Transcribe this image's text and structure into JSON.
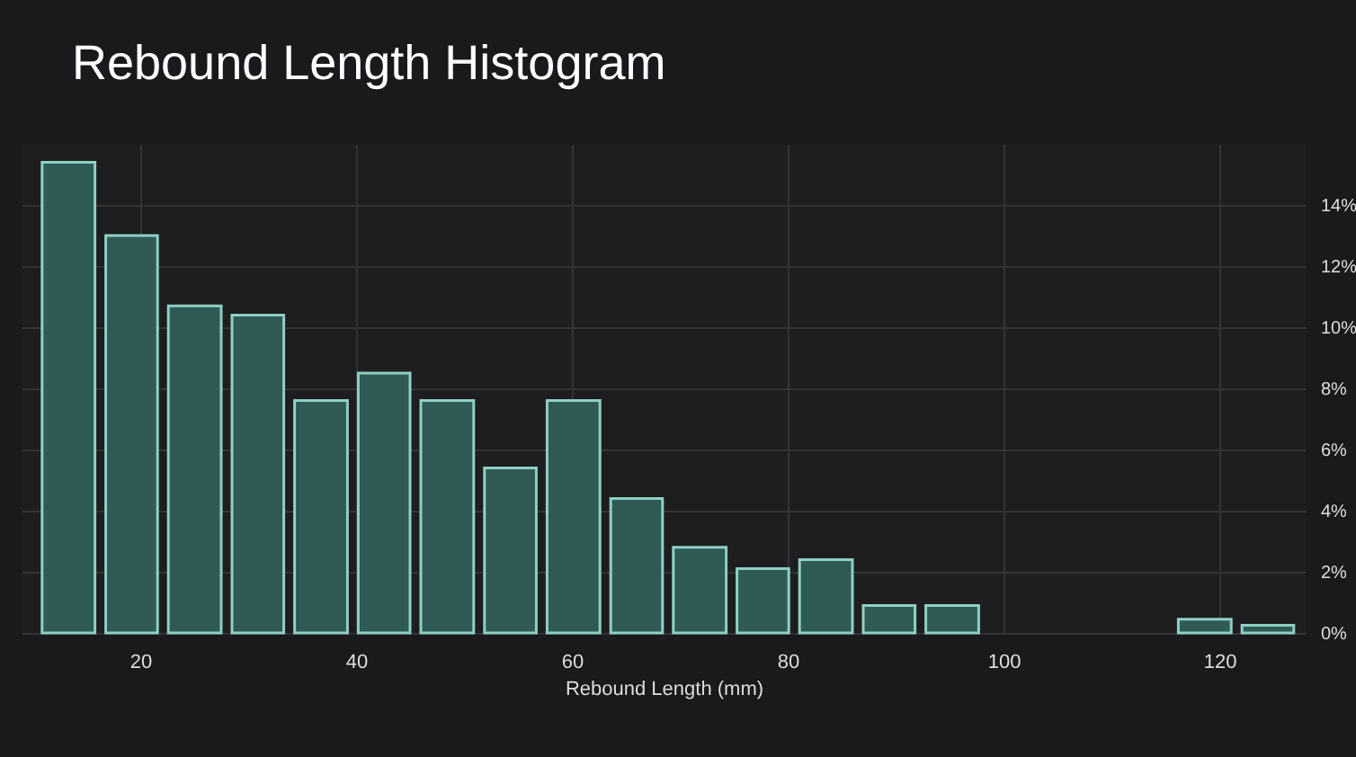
{
  "chart_data": {
    "type": "histogram",
    "title": "Rebound Length Histogram",
    "xlabel": "Rebound Length (mm)",
    "bins": [
      10.4,
      16.3,
      22.1,
      28.0,
      33.8,
      39.7,
      45.5,
      51.4,
      57.2,
      63.1,
      68.9,
      74.8,
      80.6,
      86.5,
      92.3,
      98.2,
      115.7,
      121.6,
      127.4
    ],
    "values": [
      15.4,
      13.0,
      10.7,
      10.4,
      7.6,
      8.5,
      7.6,
      5.4,
      7.6,
      4.4,
      2.8,
      2.1,
      2.4,
      0.9,
      0.9,
      0,
      0.45,
      0.25
    ],
    "color": "#2f5a56",
    "xlim": [
      9,
      128
    ],
    "xticks": [
      20,
      40,
      60,
      80,
      100,
      120
    ],
    "ylim": [
      0,
      16
    ],
    "yticks": [
      {
        "value": 0,
        "label": "0%"
      },
      {
        "value": 2,
        "label": "2%"
      },
      {
        "value": 4,
        "label": "4%"
      },
      {
        "value": 6,
        "label": "6%"
      },
      {
        "value": 8,
        "label": "8%"
      },
      {
        "value": 10,
        "label": "10%"
      },
      {
        "value": 12,
        "label": "12%"
      },
      {
        "value": 14,
        "label": "14%"
      }
    ],
    "grid": true
  }
}
